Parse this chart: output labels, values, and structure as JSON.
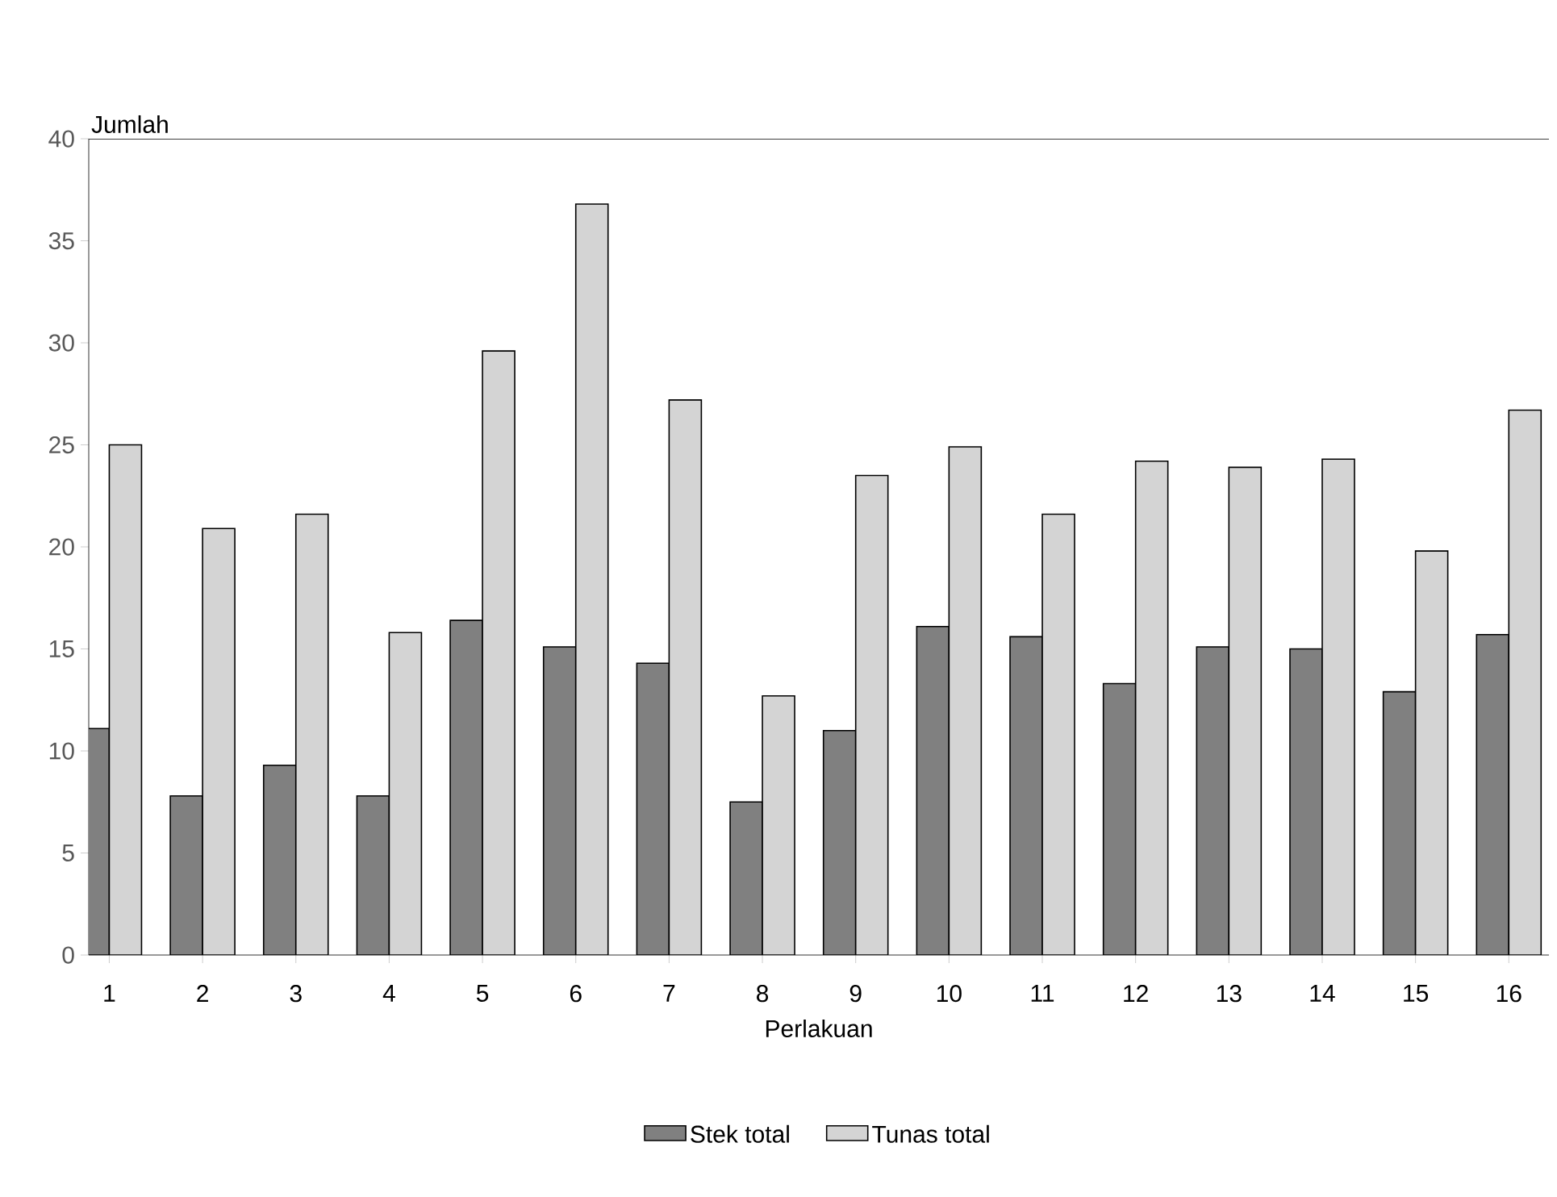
{
  "chart_data": {
    "type": "bar",
    "ylabel": "Jumlah",
    "xlabel": "Perlakuan",
    "categories": [
      "1",
      "2",
      "3",
      "4",
      "5",
      "6",
      "7",
      "8",
      "9",
      "10",
      "11",
      "12",
      "13",
      "14",
      "15",
      "16"
    ],
    "series": [
      {
        "name": "Stek total",
        "color": "#808080",
        "values": [
          11.1,
          7.8,
          9.3,
          7.8,
          16.4,
          15.1,
          14.3,
          7.5,
          11.0,
          16.1,
          15.6,
          13.3,
          15.1,
          15.0,
          12.9,
          15.7
        ]
      },
      {
        "name": "Tunas total",
        "color": "#d4d4d4",
        "values": [
          25.0,
          20.9,
          21.6,
          15.8,
          29.6,
          36.8,
          27.2,
          12.7,
          23.5,
          24.9,
          21.6,
          24.2,
          23.9,
          24.3,
          19.8,
          26.7
        ]
      }
    ],
    "ylim": [
      0,
      40
    ],
    "yticks": [
      0,
      5,
      10,
      15,
      20,
      25,
      30,
      35,
      40
    ],
    "legend": "bottom",
    "grid": false
  }
}
